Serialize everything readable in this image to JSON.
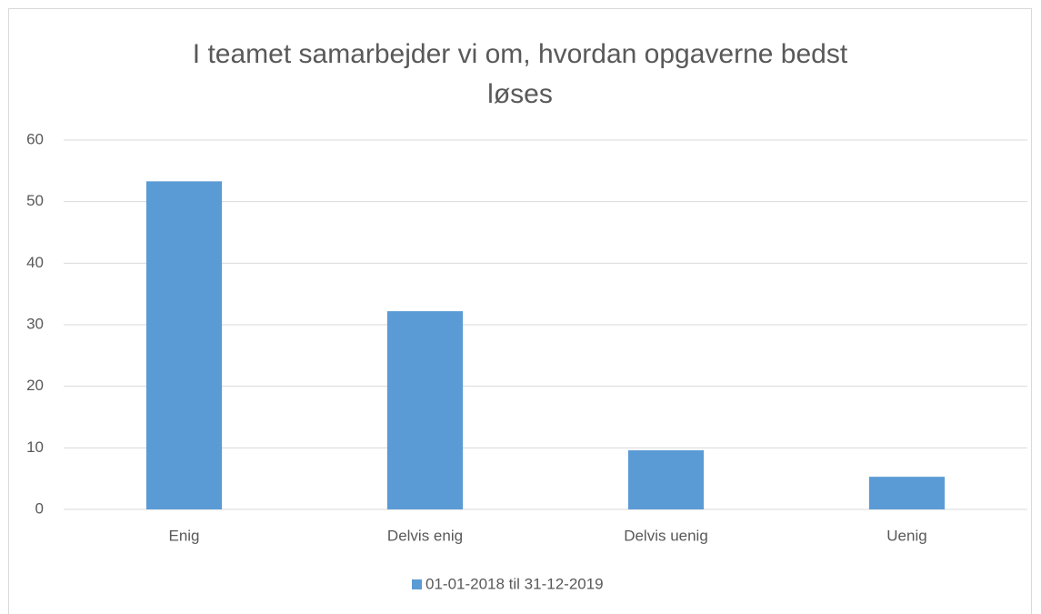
{
  "chart_data": {
    "type": "bar",
    "title": "I teamet samarbejder vi om, hvordan opgaverne bedst løses",
    "categories": [
      "Enig",
      "Delvis enig",
      "Delvis uenig",
      "Uenig"
    ],
    "series": [
      {
        "name": "01-01-2018 til 31-12-2019",
        "color": "#5b9bd5",
        "values": [
          53.3,
          32.2,
          9.6,
          5.3
        ]
      }
    ],
    "ylim": [
      0,
      60
    ],
    "yticks": [
      0,
      10,
      20,
      30,
      40,
      50,
      60
    ],
    "grid": true,
    "legend": "bottom"
  }
}
